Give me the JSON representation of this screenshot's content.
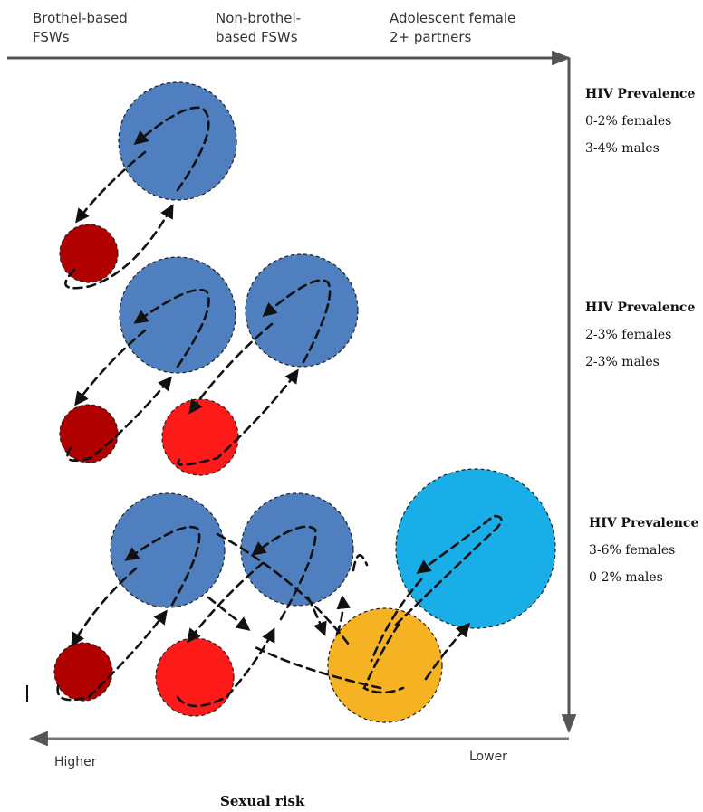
{
  "columns": [
    {
      "label": "Brothel-based\nFSWs"
    },
    {
      "label": "Non-brothel-\nbased FSWs"
    },
    {
      "label": "Adolescent female\n2+ partners"
    }
  ],
  "panels": [
    {
      "title": "HIV Prevalence",
      "females": "0-2% females",
      "males": "3-4% males"
    },
    {
      "title": "HIV Prevalence",
      "females": "2-3% females",
      "males": "2-3% males"
    },
    {
      "title": "HIV Prevalence",
      "females": "3-6% females",
      "males": "0-2% males"
    }
  ],
  "axis": {
    "left_end": "Higher",
    "right_end": "Lower",
    "title": "Sexual risk"
  },
  "colors": {
    "fsw_client": "#4f7fbf",
    "brothel_fsw": "#b00000",
    "non_brothel_fsw": "#ff1a1a",
    "adolescent_male": "#f5b324",
    "adolescent_female": "#1aaee8",
    "axis": "#555555"
  }
}
